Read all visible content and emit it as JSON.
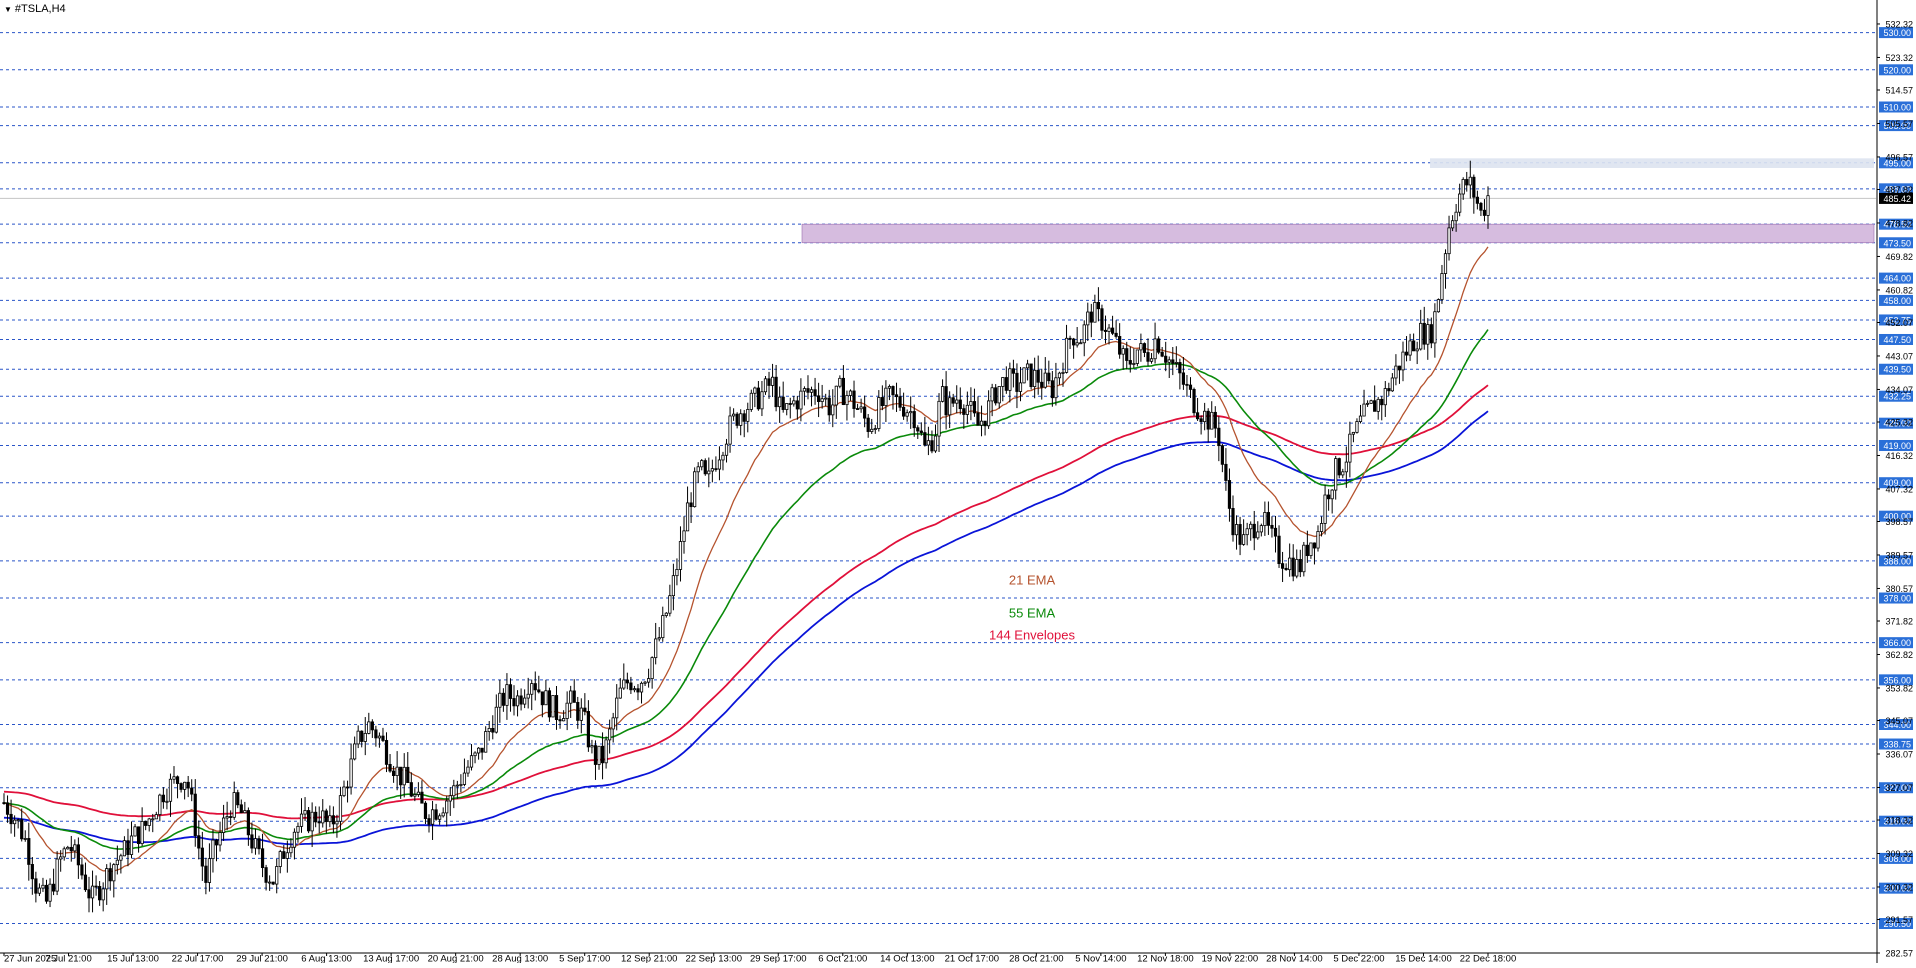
{
  "window": {
    "title": "#TSLA,H4"
  },
  "colors": {
    "background": "#ffffff",
    "candle": "#000000",
    "ema21": "#b5532e",
    "ema55": "#0a8a0a",
    "env144": "#e0103a",
    "envLower": "#0a14d8",
    "levelLine": "#2a55c8",
    "levelBox": "#2a6fd8",
    "priceBox": "#000000",
    "zone": "#c8a6d4"
  },
  "chart_data": {
    "type": "candlestick",
    "symbol": "#TSLA",
    "timeframe": "H4",
    "ylim": [
      282.57,
      535.0
    ],
    "last_price": 485.42,
    "y_ticks": [
      "532.32",
      "523.32",
      "514.57",
      "505.57",
      "496.57",
      "487.82",
      "478.82",
      "469.82",
      "460.82",
      "452.07",
      "443.07",
      "434.07",
      "425.32",
      "416.32",
      "407.32",
      "398.57",
      "389.57",
      "380.57",
      "371.82",
      "362.82",
      "353.82",
      "345.07",
      "336.07",
      "327.07",
      "318.32",
      "309.32",
      "300.32",
      "291.57",
      "282.57"
    ],
    "level_labels": [
      "530.00",
      "520.00",
      "510.00",
      "505.00",
      "495.00",
      "488.00",
      "478.50",
      "473.50",
      "464.00",
      "458.00",
      "452.75",
      "447.50",
      "439.50",
      "432.25",
      "425.00",
      "419.00",
      "409.00",
      "400.00",
      "388.00",
      "378.00",
      "366.00",
      "356.00",
      "344.00",
      "338.75",
      "327.00",
      "318.00",
      "308.00",
      "300.00",
      "290.50"
    ],
    "x_labels": [
      "27 Jun 2025",
      "7 Jul 21:00",
      "15 Jul 13:00",
      "22 Jul 17:00",
      "29 Jul 21:00",
      "6 Aug 13:00",
      "13 Aug 17:00",
      "20 Aug 21:00",
      "28 Aug 13:00",
      "5 Sep 17:00",
      "12 Sep 21:00",
      "22 Sep 13:00",
      "29 Sep 17:00",
      "6 Oct 21:00",
      "14 Oct 13:00",
      "21 Oct 17:00",
      "28 Oct 21:00",
      "5 Nov 14:00",
      "12 Nov 18:00",
      "19 Nov 22:00",
      "28 Nov 14:00",
      "5 Dec 22:00",
      "15 Dec 14:00",
      "22 Dec 18:00"
    ],
    "price_path": [
      [
        0,
        323
      ],
      [
        8,
        318
      ],
      [
        14,
        312
      ],
      [
        20,
        300
      ],
      [
        26,
        296
      ],
      [
        34,
        307
      ],
      [
        40,
        312
      ],
      [
        46,
        306
      ],
      [
        54,
        297
      ],
      [
        60,
        301
      ],
      [
        66,
        306
      ],
      [
        74,
        310
      ],
      [
        80,
        314
      ],
      [
        86,
        316
      ],
      [
        92,
        321
      ],
      [
        98,
        326
      ],
      [
        106,
        329
      ],
      [
        112,
        330
      ],
      [
        116,
        321
      ],
      [
        120,
        310
      ],
      [
        124,
        302
      ],
      [
        128,
        309
      ],
      [
        134,
        316
      ],
      [
        140,
        323
      ],
      [
        146,
        320
      ],
      [
        152,
        313
      ],
      [
        160,
        305
      ],
      [
        166,
        302
      ],
      [
        172,
        310
      ],
      [
        178,
        316
      ],
      [
        186,
        318
      ],
      [
        194,
        320
      ],
      [
        200,
        316
      ],
      [
        206,
        322
      ],
      [
        212,
        331
      ],
      [
        218,
        340
      ],
      [
        224,
        344
      ],
      [
        230,
        341
      ],
      [
        236,
        336
      ],
      [
        242,
        331
      ],
      [
        248,
        328
      ],
      [
        254,
        323
      ],
      [
        260,
        320
      ],
      [
        268,
        322
      ],
      [
        276,
        326
      ],
      [
        284,
        332
      ],
      [
        292,
        336
      ],
      [
        300,
        345
      ],
      [
        308,
        352
      ],
      [
        316,
        351
      ],
      [
        324,
        357
      ],
      [
        332,
        351
      ],
      [
        340,
        347
      ],
      [
        348,
        350
      ],
      [
        356,
        346
      ],
      [
        362,
        335
      ],
      [
        368,
        335
      ],
      [
        372,
        341
      ],
      [
        378,
        352
      ],
      [
        384,
        356
      ],
      [
        390,
        355
      ],
      [
        396,
        359
      ],
      [
        404,
        369
      ],
      [
        410,
        379
      ],
      [
        416,
        392
      ],
      [
        420,
        402
      ],
      [
        424,
        408
      ],
      [
        428,
        413
      ],
      [
        432,
        408
      ],
      [
        436,
        414
      ],
      [
        440,
        418
      ],
      [
        446,
        424
      ],
      [
        452,
        428
      ],
      [
        458,
        430
      ],
      [
        464,
        432
      ],
      [
        472,
        436
      ],
      [
        478,
        427
      ],
      [
        484,
        430
      ],
      [
        492,
        433
      ],
      [
        500,
        434
      ],
      [
        508,
        429
      ],
      [
        514,
        434
      ],
      [
        520,
        432
      ],
      [
        526,
        428
      ],
      [
        532,
        424
      ],
      [
        538,
        429
      ],
      [
        544,
        432
      ],
      [
        552,
        430
      ],
      [
        560,
        427
      ],
      [
        566,
        418
      ],
      [
        572,
        422
      ],
      [
        576,
        433
      ],
      [
        580,
        429
      ],
      [
        586,
        432
      ],
      [
        592,
        430
      ],
      [
        598,
        424
      ],
      [
        604,
        428
      ],
      [
        610,
        434
      ],
      [
        616,
        437
      ],
      [
        622,
        435
      ],
      [
        628,
        438
      ],
      [
        636,
        437
      ],
      [
        644,
        434
      ],
      [
        650,
        441
      ],
      [
        656,
        449
      ],
      [
        662,
        448
      ],
      [
        668,
        455
      ],
      [
        676,
        452
      ],
      [
        684,
        446
      ],
      [
        690,
        440
      ],
      [
        696,
        445
      ],
      [
        702,
        443
      ],
      [
        708,
        448
      ],
      [
        716,
        442
      ],
      [
        722,
        438
      ],
      [
        728,
        433
      ],
      [
        734,
        429
      ],
      [
        740,
        426
      ],
      [
        746,
        423
      ],
      [
        750,
        410
      ],
      [
        754,
        400
      ],
      [
        758,
        395
      ],
      [
        762,
        393
      ],
      [
        766,
        396
      ],
      [
        772,
        400
      ],
      [
        778,
        395
      ],
      [
        784,
        389
      ],
      [
        790,
        388
      ],
      [
        796,
        386
      ],
      [
        802,
        393
      ],
      [
        808,
        396
      ],
      [
        812,
        405
      ],
      [
        818,
        412
      ],
      [
        824,
        415
      ],
      [
        830,
        422
      ],
      [
        836,
        427
      ],
      [
        842,
        430
      ],
      [
        848,
        432
      ],
      [
        854,
        438
      ],
      [
        860,
        443
      ],
      [
        866,
        447
      ],
      [
        872,
        450
      ],
      [
        876,
        448
      ],
      [
        880,
        455
      ],
      [
        884,
        467
      ],
      [
        888,
        478
      ],
      [
        892,
        484
      ],
      [
        896,
        488
      ],
      [
        900,
        490
      ],
      [
        904,
        486
      ],
      [
        908,
        481
      ],
      [
        912,
        486
      ]
    ],
    "series": [
      {
        "name": "21 EMA"
      },
      {
        "name": "55 EMA"
      },
      {
        "name": "144 Envelopes"
      }
    ],
    "zone": {
      "from": 473.5,
      "to": 478.5
    },
    "grid": false
  }
}
